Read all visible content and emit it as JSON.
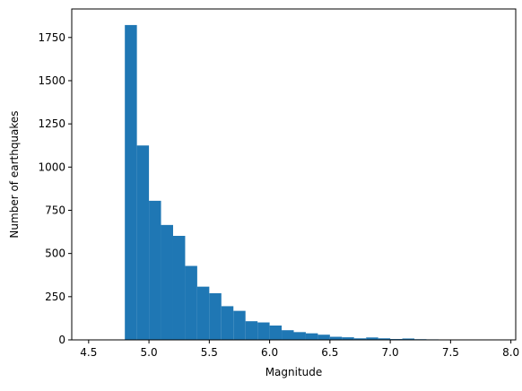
{
  "chart_data": {
    "type": "bar",
    "title": "",
    "xlabel": "Magnitude",
    "ylabel": "Number of earthquakes",
    "xlim": [
      4.36,
      8.04
    ],
    "ylim": [
      0,
      1915
    ],
    "x_ticks": [
      4.5,
      5.0,
      5.5,
      6.0,
      6.5,
      7.0,
      7.5,
      8.0
    ],
    "x_tick_labels": [
      "4.5",
      "5.0",
      "5.5",
      "6.0",
      "6.5",
      "7.0",
      "7.5",
      "8.0"
    ],
    "y_ticks": [
      0,
      250,
      500,
      750,
      1000,
      1250,
      1500,
      1750
    ],
    "y_tick_labels": [
      "0",
      "250",
      "500",
      "750",
      "1000",
      "1250",
      "1500",
      "1750"
    ],
    "grid": false,
    "legend": false,
    "bar_color": "#1f77b4",
    "bins": [
      {
        "x_start": 4.8,
        "x_end": 4.9,
        "value": 1822
      },
      {
        "x_start": 4.9,
        "x_end": 5.0,
        "value": 1125
      },
      {
        "x_start": 5.0,
        "x_end": 5.1,
        "value": 805
      },
      {
        "x_start": 5.1,
        "x_end": 5.2,
        "value": 665
      },
      {
        "x_start": 5.2,
        "x_end": 5.3,
        "value": 602
      },
      {
        "x_start": 5.3,
        "x_end": 5.4,
        "value": 428
      },
      {
        "x_start": 5.4,
        "x_end": 5.5,
        "value": 308
      },
      {
        "x_start": 5.5,
        "x_end": 5.6,
        "value": 270
      },
      {
        "x_start": 5.6,
        "x_end": 5.7,
        "value": 195
      },
      {
        "x_start": 5.7,
        "x_end": 5.8,
        "value": 168
      },
      {
        "x_start": 5.8,
        "x_end": 5.9,
        "value": 108
      },
      {
        "x_start": 5.9,
        "x_end": 6.0,
        "value": 101
      },
      {
        "x_start": 6.0,
        "x_end": 6.1,
        "value": 83
      },
      {
        "x_start": 6.1,
        "x_end": 6.2,
        "value": 56
      },
      {
        "x_start": 6.2,
        "x_end": 6.3,
        "value": 45
      },
      {
        "x_start": 6.3,
        "x_end": 6.4,
        "value": 38
      },
      {
        "x_start": 6.4,
        "x_end": 6.5,
        "value": 30
      },
      {
        "x_start": 6.5,
        "x_end": 6.6,
        "value": 18
      },
      {
        "x_start": 6.6,
        "x_end": 6.7,
        "value": 15
      },
      {
        "x_start": 6.7,
        "x_end": 6.8,
        "value": 9
      },
      {
        "x_start": 6.8,
        "x_end": 6.9,
        "value": 14
      },
      {
        "x_start": 6.9,
        "x_end": 7.0,
        "value": 9
      },
      {
        "x_start": 7.0,
        "x_end": 7.1,
        "value": 5
      },
      {
        "x_start": 7.1,
        "x_end": 7.2,
        "value": 8
      },
      {
        "x_start": 7.2,
        "x_end": 7.3,
        "value": 4
      },
      {
        "x_start": 7.3,
        "x_end": 7.4,
        "value": 3
      },
      {
        "x_start": 7.4,
        "x_end": 7.5,
        "value": 2
      },
      {
        "x_start": 7.5,
        "x_end": 7.6,
        "value": 2
      },
      {
        "x_start": 7.6,
        "x_end": 7.7,
        "value": 2
      },
      {
        "x_start": 7.7,
        "x_end": 7.8,
        "value": 1
      },
      {
        "x_start": 7.8,
        "x_end": 7.9,
        "value": 1
      }
    ]
  }
}
